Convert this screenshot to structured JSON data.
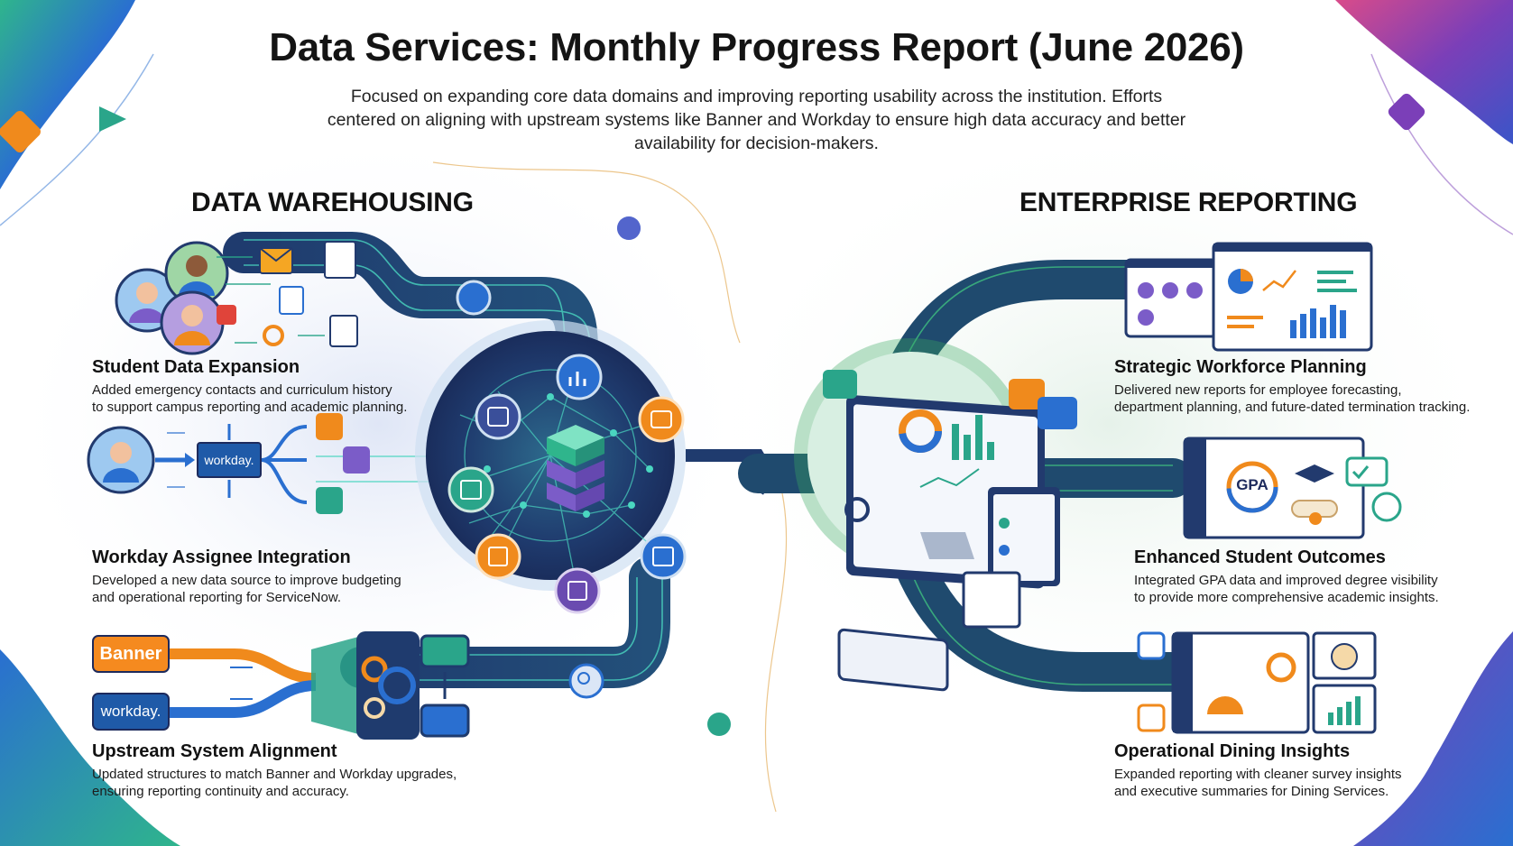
{
  "header": {
    "title": "Data Services: Monthly Progress Report (June 2026)",
    "subtitle": "Focused on expanding core data domains and improving reporting usability across the institution. Efforts centered on aligning with upstream systems like Banner and Workday to ensure high data accuracy and better availability for decision-makers."
  },
  "left": {
    "heading": "DATA WAREHOUSING",
    "items": [
      {
        "title": "Student Data Expansion",
        "desc1": "Added emergency contacts and curriculum history",
        "desc2": "to support campus reporting and academic planning."
      },
      {
        "title": "Workday Assignee Integration",
        "desc1": "Developed a new data source to improve budgeting",
        "desc2": "and operational reporting for ServiceNow."
      },
      {
        "title": "Upstream System Alignment",
        "desc1": "Updated structures to match Banner and Workday upgrades,",
        "desc2": "ensuring reporting continuity and accuracy."
      }
    ],
    "logos": {
      "banner": "Banner",
      "workday": "workday.",
      "workday_small": "workday."
    }
  },
  "right": {
    "heading": "ENTERPRISE REPORTING",
    "items": [
      {
        "title": "Strategic Workforce Planning",
        "desc1": "Delivered new reports for employee forecasting,",
        "desc2": "department planning, and future-dated termination tracking."
      },
      {
        "title": "Enhanced Student Outcomes",
        "desc1": "Integrated GPA data and improved degree visibility",
        "desc2": "to provide more comprehensive academic insights."
      },
      {
        "title": "Operational Dining Insights",
        "desc1": "Expanded reporting with cleaner survey insights",
        "desc2": "and executive summaries for Dining Services."
      }
    ],
    "gpa_label": "GPA"
  },
  "icons": [
    "email-icon",
    "document-icon",
    "gear-icon",
    "phone-icon",
    "person-icon",
    "database-icon",
    "chart-icon",
    "search-icon",
    "monitor-icon",
    "graduation-cap-icon",
    "chat-icon",
    "check-chart-icon",
    "dining-icon",
    "play-icon",
    "diamond-icon"
  ],
  "colors": {
    "navy": "#1d2a5c",
    "teal": "#2aa58a",
    "green": "#3aa860",
    "orange": "#f08a1c",
    "purple": "#6a4bb0",
    "blue": "#2a6fd0",
    "banner_orange": "#f58a1f",
    "workday_blue": "#1f5aa8"
  }
}
